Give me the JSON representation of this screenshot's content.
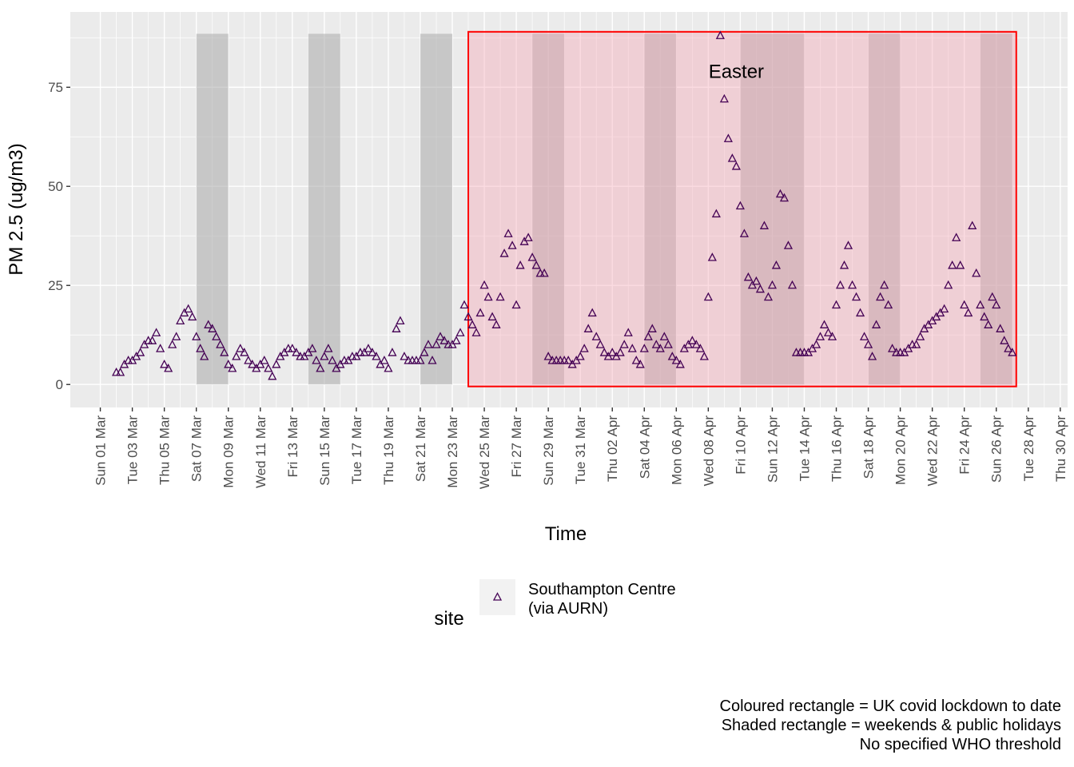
{
  "chart_data": {
    "type": "scatter",
    "y_label": "PM 2.5 (ug/m3)",
    "x_label": "Time",
    "legend_title": "site",
    "caption": "Coloured rectangle = UK covid lockdown to date\nShaded rectangle = weekends & public holidays\nNo specified WHO threshold",
    "annotation": {
      "text": "Easter",
      "x": "04-09 18:00",
      "y": 79
    },
    "xlim": [
      "02-28 03:00",
      "04-30 11:00"
    ],
    "ylim": [
      -5.8,
      94
    ],
    "yticks": [
      0,
      25,
      50,
      75
    ],
    "yminor": [
      12.5,
      37.5,
      62.5,
      87.5
    ],
    "xticks": [
      {
        "value": "03-01 00:00",
        "label": "Sun 01 Mar"
      },
      {
        "value": "03-03 00:00",
        "label": "Tue 03 Mar"
      },
      {
        "value": "03-05 00:00",
        "label": "Thu 05 Mar"
      },
      {
        "value": "03-07 00:00",
        "label": "Sat 07 Mar"
      },
      {
        "value": "03-09 00:00",
        "label": "Mon 09 Mar"
      },
      {
        "value": "03-11 00:00",
        "label": "Wed 11 Mar"
      },
      {
        "value": "03-13 00:00",
        "label": "Fri 13 Mar"
      },
      {
        "value": "03-15 00:00",
        "label": "Sun 15 Mar"
      },
      {
        "value": "03-17 00:00",
        "label": "Tue 17 Mar"
      },
      {
        "value": "03-19 00:00",
        "label": "Thu 19 Mar"
      },
      {
        "value": "03-21 00:00",
        "label": "Sat 21 Mar"
      },
      {
        "value": "03-23 00:00",
        "label": "Mon 23 Mar"
      },
      {
        "value": "03-25 00:00",
        "label": "Wed 25 Mar"
      },
      {
        "value": "03-27 00:00",
        "label": "Fri 27 Mar"
      },
      {
        "value": "03-29 00:00",
        "label": "Sun 29 Mar"
      },
      {
        "value": "03-31 00:00",
        "label": "Tue 31 Mar"
      },
      {
        "value": "04-02 00:00",
        "label": "Thu 02 Apr"
      },
      {
        "value": "04-04 00:00",
        "label": "Sat 04 Apr"
      },
      {
        "value": "04-06 00:00",
        "label": "Mon 06 Apr"
      },
      {
        "value": "04-08 00:00",
        "label": "Wed 08 Apr"
      },
      {
        "value": "04-10 00:00",
        "label": "Fri 10 Apr"
      },
      {
        "value": "04-12 00:00",
        "label": "Sun 12 Apr"
      },
      {
        "value": "04-14 00:00",
        "label": "Tue 14 Apr"
      },
      {
        "value": "04-16 00:00",
        "label": "Thu 16 Apr"
      },
      {
        "value": "04-18 00:00",
        "label": "Sat 18 Apr"
      },
      {
        "value": "04-20 00:00",
        "label": "Mon 20 Apr"
      },
      {
        "value": "04-22 00:00",
        "label": "Wed 22 Apr"
      },
      {
        "value": "04-24 00:00",
        "label": "Fri 24 Apr"
      },
      {
        "value": "04-26 00:00",
        "label": "Sun 26 Apr"
      },
      {
        "value": "04-28 00:00",
        "label": "Tue 28 Apr"
      },
      {
        "value": "04-30 00:00",
        "label": "Thu 30 Apr"
      }
    ],
    "xminor": [
      "03-02 00:00",
      "03-04 00:00",
      "03-06 00:00",
      "03-08 00:00",
      "03-10 00:00",
      "03-12 00:00",
      "03-14 00:00",
      "03-16 00:00",
      "03-18 00:00",
      "03-20 00:00",
      "03-22 00:00",
      "03-24 00:00",
      "03-26 00:00",
      "03-28 00:00",
      "03-30 00:00",
      "04-01 00:00",
      "04-03 00:00",
      "04-05 00:00",
      "04-07 00:00",
      "04-09 00:00",
      "04-11 00:00",
      "04-13 00:00",
      "04-15 00:00",
      "04-17 00:00",
      "04-19 00:00",
      "04-21 00:00",
      "04-23 00:00",
      "04-25 00:00",
      "04-27 00:00",
      "04-29 00:00"
    ],
    "shaded": {
      "color": "#a9a9a9",
      "y": [
        0,
        88.5
      ],
      "ranges": [
        [
          "03-07 00:00",
          "03-09 00:00"
        ],
        [
          "03-14 00:00",
          "03-16 00:00"
        ],
        [
          "03-21 00:00",
          "03-23 00:00"
        ],
        [
          "03-28 00:00",
          "03-30 00:00"
        ],
        [
          "04-04 00:00",
          "04-06 00:00"
        ],
        [
          "04-10 00:00",
          "04-14 00:00"
        ],
        [
          "04-18 00:00",
          "04-20 00:00"
        ],
        [
          "04-25 00:00",
          "04-27 00:00"
        ]
      ]
    },
    "lockdown": {
      "fill": "#f4a6b4",
      "stroke": "#ff0000",
      "x": [
        "03-24 00:00",
        "04-27 06:00"
      ],
      "y": [
        -0.5,
        89
      ]
    },
    "series": [
      {
        "name": "Southampton Centre\n(via AURN)",
        "color": "#440154",
        "x": [
          "03-02 00:00",
          "03-02 06:00",
          "03-02 12:00",
          "03-02 18:00",
          "03-03 00:00",
          "03-03 06:00",
          "03-03 12:00",
          "03-03 18:00",
          "03-04 00:00",
          "03-04 06:00",
          "03-04 12:00",
          "03-04 18:00",
          "03-05 00:00",
          "03-05 06:00",
          "03-05 12:00",
          "03-05 18:00",
          "03-06 00:00",
          "03-06 06:00",
          "03-06 12:00",
          "03-06 18:00",
          "03-07 00:00",
          "03-07 06:00",
          "03-07 12:00",
          "03-07 18:00",
          "03-08 00:00",
          "03-08 06:00",
          "03-08 12:00",
          "03-08 18:00",
          "03-09 00:00",
          "03-09 06:00",
          "03-09 12:00",
          "03-09 18:00",
          "03-10 00:00",
          "03-10 06:00",
          "03-10 12:00",
          "03-10 18:00",
          "03-11 00:00",
          "03-11 06:00",
          "03-11 12:00",
          "03-11 18:00",
          "03-12 00:00",
          "03-12 06:00",
          "03-12 12:00",
          "03-12 18:00",
          "03-13 00:00",
          "03-13 06:00",
          "03-13 12:00",
          "03-13 18:00",
          "03-14 00:00",
          "03-14 06:00",
          "03-14 12:00",
          "03-14 18:00",
          "03-15 00:00",
          "03-15 06:00",
          "03-15 12:00",
          "03-15 18:00",
          "03-16 00:00",
          "03-16 06:00",
          "03-16 12:00",
          "03-16 18:00",
          "03-17 00:00",
          "03-17 06:00",
          "03-17 12:00",
          "03-17 18:00",
          "03-18 00:00",
          "03-18 06:00",
          "03-18 12:00",
          "03-18 18:00",
          "03-19 00:00",
          "03-19 06:00",
          "03-19 12:00",
          "03-19 18:00",
          "03-20 00:00",
          "03-20 06:00",
          "03-20 12:00",
          "03-20 18:00",
          "03-21 00:00",
          "03-21 06:00",
          "03-21 12:00",
          "03-21 18:00",
          "03-22 00:00",
          "03-22 06:00",
          "03-22 12:00",
          "03-22 18:00",
          "03-23 00:00",
          "03-23 06:00",
          "03-23 12:00",
          "03-23 18:00",
          "03-24 00:00",
          "03-24 06:00",
          "03-24 12:00",
          "03-24 18:00",
          "03-25 00:00",
          "03-25 06:00",
          "03-25 12:00",
          "03-25 18:00",
          "03-26 00:00",
          "03-26 06:00",
          "03-26 12:00",
          "03-26 18:00",
          "03-27 00:00",
          "03-27 06:00",
          "03-27 12:00",
          "03-27 18:00",
          "03-28 00:00",
          "03-28 06:00",
          "03-28 12:00",
          "03-28 18:00",
          "03-29 00:00",
          "03-29 06:00",
          "03-29 12:00",
          "03-29 18:00",
          "03-30 00:00",
          "03-30 06:00",
          "03-30 12:00",
          "03-30 18:00",
          "03-31 00:00",
          "03-31 06:00",
          "03-31 12:00",
          "03-31 18:00",
          "04-01 00:00",
          "04-01 06:00",
          "04-01 12:00",
          "04-01 18:00",
          "04-02 00:00",
          "04-02 06:00",
          "04-02 12:00",
          "04-02 18:00",
          "04-03 00:00",
          "04-03 06:00",
          "04-03 12:00",
          "04-03 18:00",
          "04-04 00:00",
          "04-04 06:00",
          "04-04 12:00",
          "04-04 18:00",
          "04-05 00:00",
          "04-05 06:00",
          "04-05 12:00",
          "04-05 18:00",
          "04-06 00:00",
          "04-06 06:00",
          "04-06 12:00",
          "04-06 18:00",
          "04-07 00:00",
          "04-07 06:00",
          "04-07 12:00",
          "04-07 18:00",
          "04-08 00:00",
          "04-08 06:00",
          "04-08 12:00",
          "04-08 18:00",
          "04-09 00:00",
          "04-09 06:00",
          "04-09 12:00",
          "04-09 18:00",
          "04-10 00:00",
          "04-10 06:00",
          "04-10 12:00",
          "04-10 18:00",
          "04-11 00:00",
          "04-11 06:00",
          "04-11 12:00",
          "04-11 18:00",
          "04-12 00:00",
          "04-12 06:00",
          "04-12 12:00",
          "04-12 18:00",
          "04-13 00:00",
          "04-13 06:00",
          "04-13 12:00",
          "04-13 18:00",
          "04-14 00:00",
          "04-14 06:00",
          "04-14 12:00",
          "04-14 18:00",
          "04-15 00:00",
          "04-15 06:00",
          "04-15 12:00",
          "04-15 18:00",
          "04-16 00:00",
          "04-16 06:00",
          "04-16 12:00",
          "04-16 18:00",
          "04-17 00:00",
          "04-17 06:00",
          "04-17 12:00",
          "04-17 18:00",
          "04-18 00:00",
          "04-18 06:00",
          "04-18 12:00",
          "04-18 18:00",
          "04-19 00:00",
          "04-19 06:00",
          "04-19 12:00",
          "04-19 18:00",
          "04-20 00:00",
          "04-20 06:00",
          "04-20 12:00",
          "04-20 18:00",
          "04-21 00:00",
          "04-21 06:00",
          "04-21 12:00",
          "04-21 18:00",
          "04-22 00:00",
          "04-22 06:00",
          "04-22 12:00",
          "04-22 18:00",
          "04-23 00:00",
          "04-23 06:00",
          "04-23 12:00",
          "04-23 18:00",
          "04-24 00:00",
          "04-24 06:00",
          "04-24 12:00",
          "04-24 18:00",
          "04-25 00:00",
          "04-25 06:00",
          "04-25 12:00",
          "04-25 18:00",
          "04-26 00:00",
          "04-26 06:00",
          "04-26 12:00",
          "04-26 18:00",
          "04-27 00:00"
        ],
        "values": [
          3,
          3,
          5,
          6,
          6,
          7,
          8,
          10,
          11,
          11,
          13,
          9,
          5,
          4,
          10,
          12,
          16,
          18,
          19,
          17,
          12,
          9,
          7,
          15,
          14,
          12,
          10,
          8,
          5,
          4,
          7,
          9,
          8,
          6,
          5,
          4,
          5,
          6,
          4,
          2,
          5,
          7,
          8,
          9,
          9,
          8,
          7,
          7,
          8,
          9,
          6,
          4,
          7,
          9,
          6,
          4,
          5,
          6,
          6,
          7,
          7,
          8,
          8,
          9,
          8,
          7,
          5,
          6,
          4,
          8,
          14,
          16,
          7,
          6,
          6,
          6,
          6,
          8,
          10,
          6,
          10,
          12,
          11,
          10,
          10,
          11,
          13,
          20,
          17,
          15,
          13,
          18,
          25,
          22,
          17,
          15,
          22,
          33,
          38,
          35,
          20,
          30,
          36,
          37,
          32,
          30,
          28,
          28,
          7,
          6,
          6,
          6,
          6,
          6,
          5,
          6,
          7,
          9,
          14,
          18,
          12,
          10,
          8,
          7,
          8,
          7,
          8,
          10,
          13,
          9,
          6,
          5,
          9,
          12,
          14,
          10,
          9,
          12,
          10,
          7,
          6,
          5,
          9,
          10,
          11,
          10,
          9,
          7,
          22,
          32,
          43,
          88,
          72,
          62,
          57,
          55,
          45,
          38,
          27,
          25,
          26,
          24,
          40,
          22,
          25,
          30,
          48,
          47,
          35,
          25,
          8,
          8,
          8,
          8,
          9,
          10,
          12,
          15,
          13,
          12,
          20,
          25,
          30,
          35,
          25,
          22,
          18,
          12,
          10,
          7,
          15,
          22,
          25,
          20,
          9,
          8,
          8,
          8,
          9,
          10,
          10,
          12,
          14,
          15,
          16,
          17,
          18,
          19,
          25,
          30,
          37,
          30,
          20,
          18,
          40,
          28,
          20,
          17,
          15,
          22,
          20,
          14,
          11,
          9,
          8
        ]
      }
    ]
  }
}
